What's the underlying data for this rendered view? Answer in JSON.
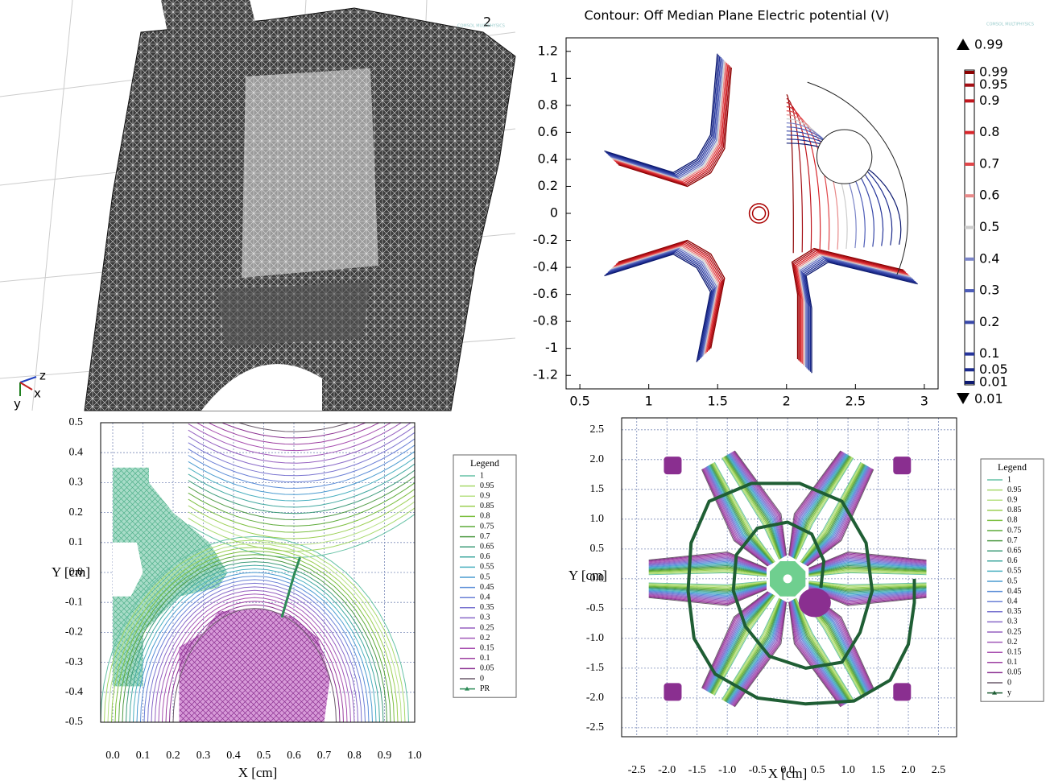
{
  "mesh_view": {
    "label": "2",
    "watermark": "COMSOL MULTIPHYSICS",
    "axes": {
      "z": "z",
      "y": "y",
      "x": "x"
    }
  },
  "chart_data": [
    {
      "type": "contour",
      "title": "Contour: Off Median Plane Electric potential (V)",
      "watermark": "COMSOL MULTIPHYSICS",
      "xlim": [
        0.4,
        3.1
      ],
      "xticks": [
        0.5,
        1,
        1.5,
        2,
        2.5,
        3
      ],
      "ylim": [
        -1.3,
        1.3
      ],
      "yticks": [
        1.2,
        1,
        0.8,
        0.6,
        0.4,
        0.2,
        0,
        -0.2,
        -0.4,
        -0.6,
        -0.8,
        -1,
        -1.2
      ],
      "levels": [
        0.99,
        0.95,
        0.9,
        0.8,
        0.7,
        0.6,
        0.5,
        0.4,
        0.3,
        0.2,
        0.1,
        0.05,
        0.01
      ],
      "level_colors": [
        "#8b0000",
        "#a50f15",
        "#c0161d",
        "#d7262b",
        "#e0474a",
        "#e88a8a",
        "#cccccc",
        "#7b85c8",
        "#4e5db8",
        "#3848a8",
        "#26359b",
        "#1b2a8c",
        "#0d1a70"
      ],
      "colorbar_max": 0.99,
      "colorbar_min": 0.01
    },
    {
      "type": "contour",
      "xlabel": "X  [cm]",
      "ylabel": "Y [cm]",
      "legend_title": "Legend",
      "grid": true,
      "xlim": [
        -0.04,
        1.0
      ],
      "xticks": [
        {
          "value": 0,
          "label": "0.0"
        },
        0.1,
        0.2,
        0.3,
        0.4,
        0.5,
        0.6,
        0.7,
        0.8,
        0.9,
        {
          "value": 1,
          "label": "1.0"
        }
      ],
      "ylim": [
        -0.5,
        0.5
      ],
      "yticks": [
        0.5,
        0.4,
        0.3,
        0.2,
        0.1,
        {
          "value": 0,
          "label": "0.0"
        },
        -0.1,
        -0.2,
        -0.3,
        -0.4,
        -0.5
      ],
      "levels": [
        1,
        0.95,
        0.9,
        0.85,
        0.8,
        0.75,
        0.7,
        0.65,
        0.6,
        0.55,
        0.5,
        0.45,
        0.4,
        0.35,
        0.3,
        0.25,
        0.2,
        0.15,
        0.1,
        0.05,
        0
      ],
      "level_colors": [
        "#66c2a5",
        "#a6d96a",
        "#b8e186",
        "#9bcf53",
        "#7cbf3f",
        "#5eab3a",
        "#4f9a45",
        "#3f9c7a",
        "#41a8a0",
        "#4bb0c0",
        "#4a9bd0",
        "#5b8ed8",
        "#6a7fd6",
        "#7a74d0",
        "#8868c8",
        "#9560c0",
        "#a058b8",
        "#a850b0",
        "#9c3fa0",
        "#8a2f90",
        "#6a5a6a"
      ],
      "series": [
        {
          "name": "PR",
          "color": "#2e8b57",
          "x": [
            0.56,
            0.58,
            0.6,
            0.62
          ],
          "values": [
            -0.15,
            -0.08,
            -0.01,
            0.05
          ]
        }
      ]
    },
    {
      "type": "contour",
      "xlabel": "X  [cm]",
      "ylabel": "Y [cm]",
      "legend_title": "Legend",
      "grid": true,
      "xlim": [
        -2.75,
        2.8
      ],
      "xticks": [
        -2.5,
        {
          "value": -2,
          "label": "-2.0"
        },
        -1.5,
        {
          "value": -1,
          "label": "-1.0"
        },
        -0.5,
        {
          "value": 0,
          "label": "0.0"
        },
        0.5,
        {
          "value": 1,
          "label": "1.0"
        },
        1.5,
        {
          "value": 2,
          "label": "2.0"
        },
        2.5
      ],
      "ylim": [
        -2.65,
        2.7
      ],
      "yticks": [
        2.5,
        {
          "value": 2,
          "label": "2.0"
        },
        1.5,
        {
          "value": 1,
          "label": "1.0"
        },
        0.5,
        {
          "value": 0,
          "label": "0.0"
        },
        -0.5,
        {
          "value": -1,
          "label": "-1.0"
        },
        -1.5,
        {
          "value": -2,
          "label": "-2.0"
        },
        -2.5
      ],
      "levels": [
        1,
        0.95,
        0.9,
        0.85,
        0.8,
        0.75,
        0.7,
        0.65,
        0.6,
        0.55,
        0.5,
        0.45,
        0.4,
        0.35,
        0.3,
        0.25,
        0.2,
        0.15,
        0.1,
        0.05,
        0
      ],
      "level_colors": [
        "#66c2a5",
        "#a6d96a",
        "#b8e186",
        "#9bcf53",
        "#7cbf3f",
        "#5eab3a",
        "#4f9a45",
        "#3f9c7a",
        "#41a8a0",
        "#4bb0c0",
        "#4a9bd0",
        "#5b8ed8",
        "#6a7fd6",
        "#7a74d0",
        "#8868c8",
        "#9560c0",
        "#a058b8",
        "#a850b0",
        "#9c3fa0",
        "#8a2f90",
        "#6a5a6a"
      ],
      "series": [
        {
          "name": "y",
          "color": "#1f5e34",
          "x": [
            0.55,
            0.6,
            0.4,
            0,
            -0.5,
            -0.85,
            -0.9,
            -0.7,
            -0.3,
            0.3,
            0.9,
            1.2,
            1.4,
            1.3,
            0.9,
            0.2,
            -0.6,
            -1.3,
            -1.6,
            -1.65,
            -1.55,
            -1.2,
            -0.5,
            0.3,
            1.1,
            1.7,
            2.0,
            2.1,
            2.1
          ],
          "values": [
            -0.15,
            0.3,
            0.75,
            0.95,
            0.85,
            0.4,
            -0.2,
            -0.8,
            -1.3,
            -1.5,
            -1.4,
            -0.9,
            -0.2,
            0.6,
            1.3,
            1.6,
            1.6,
            1.3,
            0.6,
            -0.2,
            -1.0,
            -1.6,
            -2.0,
            -2.1,
            -2.05,
            -1.7,
            -1.1,
            -0.4,
            0.0
          ]
        }
      ]
    }
  ]
}
